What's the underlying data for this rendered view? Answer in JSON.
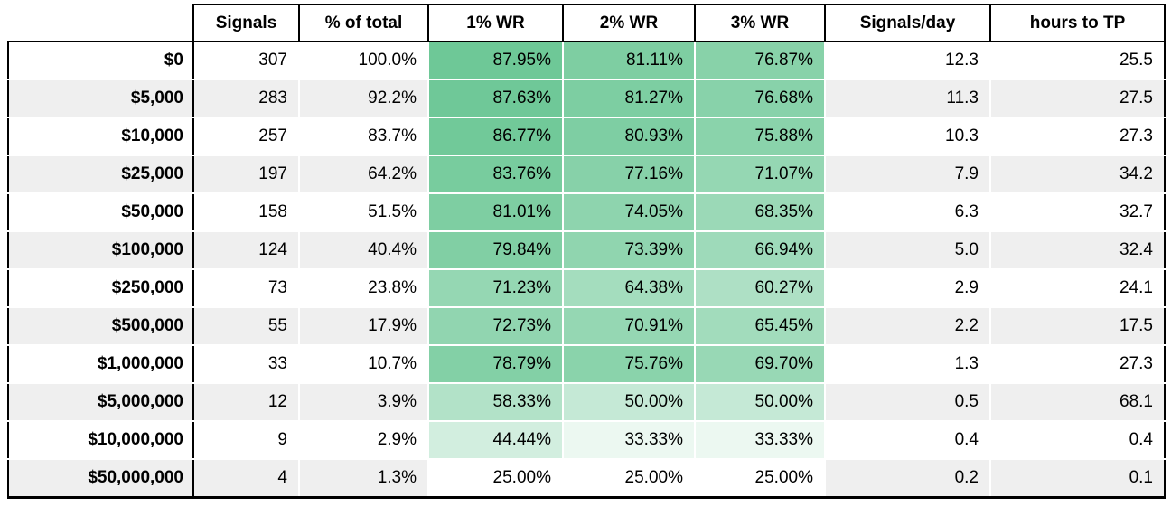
{
  "chart_data": {
    "type": "table",
    "corner_label": "",
    "columns": [
      "Signals",
      "% of total",
      "1% WR",
      "2% WR",
      "3% WR",
      "Signals/day",
      "hours to TP"
    ],
    "rows": [
      {
        "label": "$0",
        "values": [
          "307",
          "100.0%",
          "87.95%",
          "81.11%",
          "76.87%",
          "12.3",
          "25.5"
        ]
      },
      {
        "label": "$5,000",
        "values": [
          "283",
          "92.2%",
          "87.63%",
          "81.27%",
          "76.68%",
          "11.3",
          "27.5"
        ]
      },
      {
        "label": "$10,000",
        "values": [
          "257",
          "83.7%",
          "86.77%",
          "80.93%",
          "75.88%",
          "10.3",
          "27.3"
        ]
      },
      {
        "label": "$25,000",
        "values": [
          "197",
          "64.2%",
          "83.76%",
          "77.16%",
          "71.07%",
          "7.9",
          "34.2"
        ]
      },
      {
        "label": "$50,000",
        "values": [
          "158",
          "51.5%",
          "81.01%",
          "74.05%",
          "68.35%",
          "6.3",
          "32.7"
        ]
      },
      {
        "label": "$100,000",
        "values": [
          "124",
          "40.4%",
          "79.84%",
          "73.39%",
          "66.94%",
          "5.0",
          "32.4"
        ]
      },
      {
        "label": "$250,000",
        "values": [
          "73",
          "23.8%",
          "71.23%",
          "64.38%",
          "60.27%",
          "2.9",
          "24.1"
        ]
      },
      {
        "label": "$500,000",
        "values": [
          "55",
          "17.9%",
          "72.73%",
          "70.91%",
          "65.45%",
          "2.2",
          "17.5"
        ]
      },
      {
        "label": "$1,000,000",
        "values": [
          "33",
          "10.7%",
          "78.79%",
          "75.76%",
          "69.70%",
          "1.3",
          "27.3"
        ]
      },
      {
        "label": "$5,000,000",
        "values": [
          "12",
          "3.9%",
          "58.33%",
          "50.00%",
          "50.00%",
          "0.5",
          "68.1"
        ]
      },
      {
        "label": "$10,000,000",
        "values": [
          "9",
          "2.9%",
          "44.44%",
          "33.33%",
          "33.33%",
          "0.4",
          "0.4"
        ]
      },
      {
        "label": "$50,000,000",
        "values": [
          "4",
          "1.3%",
          "25.00%",
          "25.00%",
          "25.00%",
          "0.2",
          "0.1"
        ]
      }
    ],
    "heatmap": {
      "columns": [
        "1% WR",
        "2% WR",
        "3% WR"
      ],
      "min_value": 25.0,
      "max_value": 87.95,
      "min_color": "#ffffff",
      "max_color": "#6ec897"
    },
    "layout": {
      "stripe_color": "#efefef",
      "row_bg_color": "#ffffff",
      "border_color": "#000000",
      "legend_position": "none",
      "grid": "white-gridlines"
    }
  }
}
